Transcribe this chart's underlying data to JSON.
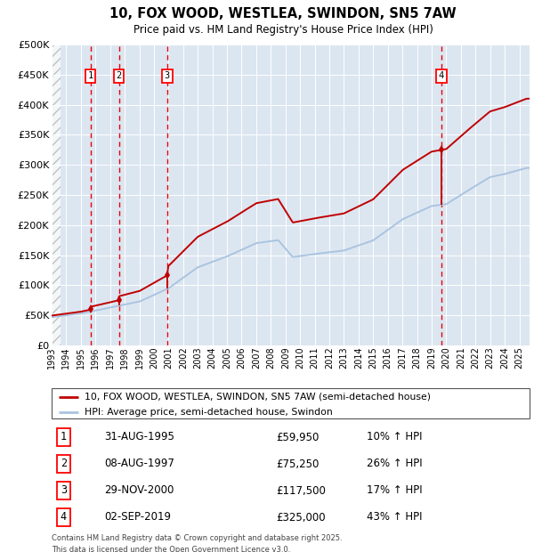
{
  "title": "10, FOX WOOD, WESTLEA, SWINDON, SN5 7AW",
  "subtitle": "Price paid vs. HM Land Registry's House Price Index (HPI)",
  "legend_line1": "10, FOX WOOD, WESTLEA, SWINDON, SN5 7AW (semi-detached house)",
  "legend_line2": "HPI: Average price, semi-detached house, Swindon",
  "footer1": "Contains HM Land Registry data © Crown copyright and database right 2025.",
  "footer2": "This data is licensed under the Open Government Licence v3.0.",
  "sale_dates": [
    "1995-08-31",
    "1997-08-08",
    "2000-11-29",
    "2019-09-02"
  ],
  "sale_prices": [
    59950,
    75250,
    117500,
    325000
  ],
  "sale_labels": [
    "1",
    "2",
    "3",
    "4"
  ],
  "sale_hpi_pct": [
    "10% ↑ HPI",
    "26% ↑ HPI",
    "17% ↑ HPI",
    "43% ↑ HPI"
  ],
  "sale_dates_display": [
    "31-AUG-1995",
    "08-AUG-1997",
    "29-NOV-2000",
    "02-SEP-2019"
  ],
  "sale_prices_display": [
    "£59,950",
    "£75,250",
    "£117,500",
    "£325,000"
  ],
  "ylim": [
    0,
    500000
  ],
  "ytick_values": [
    0,
    50000,
    100000,
    150000,
    200000,
    250000,
    300000,
    350000,
    400000,
    450000,
    500000
  ],
  "ytick_labels": [
    "£0",
    "£50K",
    "£100K",
    "£150K",
    "£200K",
    "£250K",
    "£300K",
    "£350K",
    "£400K",
    "£450K",
    "£500K"
  ],
  "hpi_color": "#aac4e0",
  "price_color": "#c00000",
  "marker_color": "#c00000",
  "dashed_color": "#e8000a",
  "bg_color": "#dce6f1",
  "grid_color": "#ffffff",
  "x_start_year": 1993,
  "x_end_year": 2025,
  "hpi_base_points": [
    [
      1993.0,
      47000
    ],
    [
      1995.0,
      53000
    ],
    [
      1997.0,
      63000
    ],
    [
      1999.0,
      73000
    ],
    [
      2001.0,
      95000
    ],
    [
      2003.0,
      130000
    ],
    [
      2005.0,
      148000
    ],
    [
      2007.0,
      170000
    ],
    [
      2008.5,
      175000
    ],
    [
      2009.5,
      147000
    ],
    [
      2011.0,
      152000
    ],
    [
      2013.0,
      158000
    ],
    [
      2015.0,
      175000
    ],
    [
      2017.0,
      210000
    ],
    [
      2019.0,
      232000
    ],
    [
      2020.0,
      235000
    ],
    [
      2021.5,
      258000
    ],
    [
      2023.0,
      280000
    ],
    [
      2024.0,
      285000
    ],
    [
      2025.5,
      295000
    ]
  ]
}
